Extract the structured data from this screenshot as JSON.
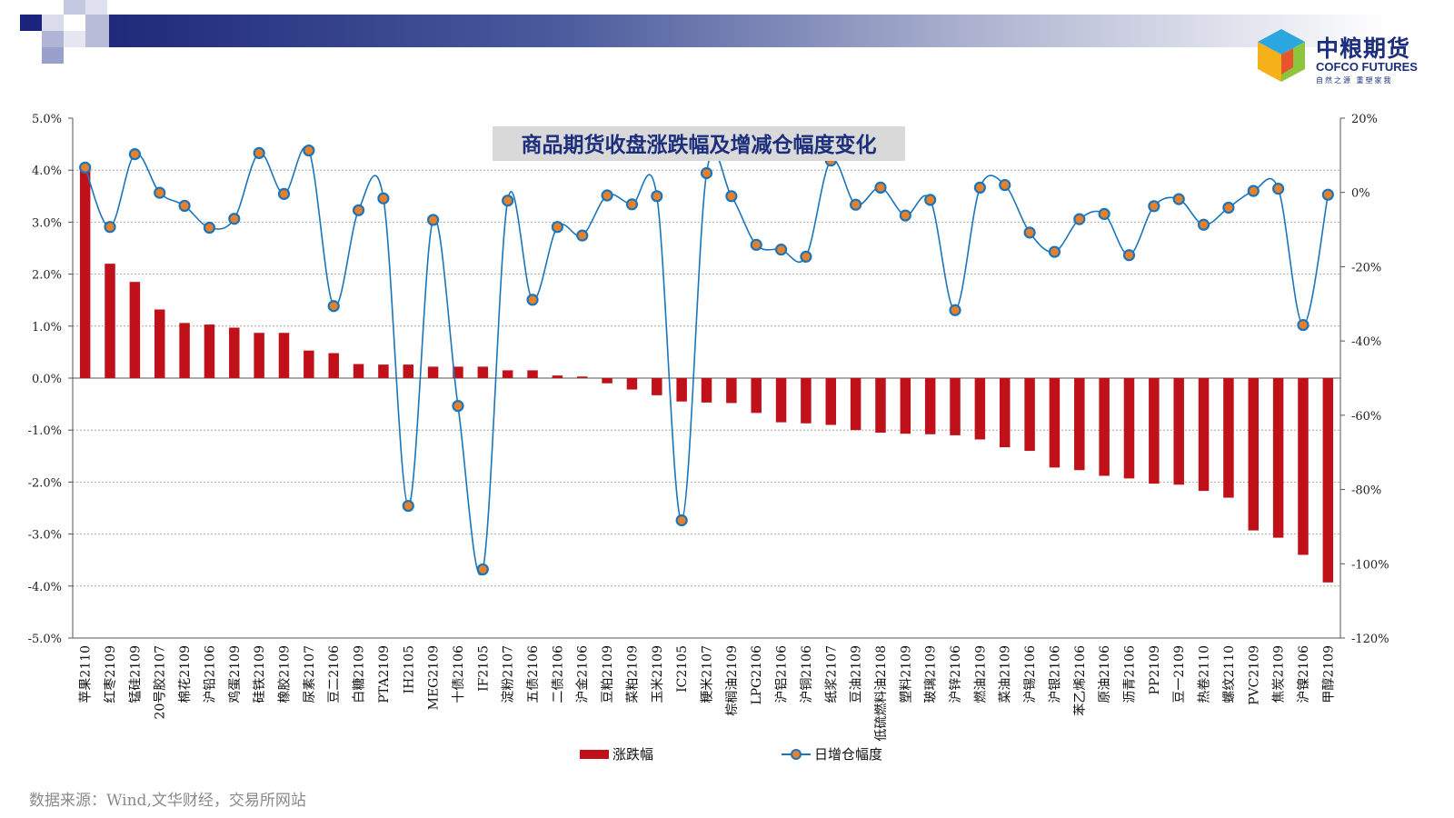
{
  "source_note": "数据来源：Wind,文华财经，交易所网站",
  "logo": {
    "cn": "中粮期货",
    "en": "COFCO FUTURES",
    "slogan": "自然之源 重塑家我"
  },
  "colors": {
    "bar": "#c0111b",
    "line": "#1b75bb",
    "marker_fill": "#e8802a",
    "title_bg": "#d9d9d9",
    "title_text": "#1d2f7c"
  },
  "chart_data": {
    "type": "bar",
    "title": "商品期货收盘涨跌幅及增减仓幅度变化",
    "categories": [
      "苹果2110",
      "红枣2109",
      "锰硅2109",
      "20号胶2107",
      "棉花2109",
      "沪铅2106",
      "鸡蛋2109",
      "硅铁2109",
      "橡胶2109",
      "尿素2107",
      "豆二2106",
      "白糖2109",
      "PTA2109",
      "IH2105",
      "MEG2109",
      "十债2106",
      "IF2105",
      "淀粉2107",
      "五债2106",
      "二债2106",
      "沪金2106",
      "豆粕2109",
      "菜粕2109",
      "玉米2109",
      "IC2105",
      "粳米2107",
      "棕榈油2109",
      "LPG2106",
      "沪铝2106",
      "沪铜2106",
      "纸浆2107",
      "豆油2109",
      "低硫燃料油2108",
      "塑料2109",
      "玻璃2109",
      "沪锌2106",
      "燃油2109",
      "菜油2109",
      "沪锡2106",
      "沪银2106",
      "苯乙烯2106",
      "原油2106",
      "沥青2106",
      "PP2109",
      "豆一2109",
      "热卷2110",
      "螺纹2110",
      "PVC2109",
      "焦炭2109",
      "沪镍2106",
      "甲醇2109"
    ],
    "series": [
      {
        "name": "涨跌幅",
        "type": "bar",
        "axis": "left",
        "values": [
          4.0,
          2.2,
          1.85,
          1.32,
          1.06,
          1.03,
          0.97,
          0.87,
          0.87,
          0.53,
          0.48,
          0.27,
          0.26,
          0.26,
          0.22,
          0.22,
          0.22,
          0.15,
          0.15,
          0.05,
          0.03,
          -0.1,
          -0.22,
          -0.33,
          -0.45,
          -0.47,
          -0.48,
          -0.67,
          -0.85,
          -0.87,
          -0.9,
          -1.0,
          -1.05,
          -1.07,
          -1.08,
          -1.1,
          -1.18,
          -1.33,
          -1.4,
          -1.72,
          -1.77,
          -1.88,
          -1.93,
          -2.03,
          -2.05,
          -2.17,
          -2.3,
          -2.93,
          -3.07,
          -3.4,
          -3.93
        ]
      },
      {
        "name": "日增仓幅度",
        "type": "line",
        "axis": "right",
        "values": [
          6.7,
          -9.3,
          10.3,
          -0.1,
          -3.6,
          -9.5,
          -7.1,
          10.6,
          -0.4,
          11.3,
          -30.6,
          -4.8,
          -1.6,
          -84.4,
          -7.4,
          -57.5,
          -101.5,
          -2.2,
          -28.9,
          -9.3,
          -11.6,
          -0.8,
          -3.2,
          -1.0,
          -88.3,
          5.2,
          -1.0,
          -14.1,
          -15.4,
          -17.3,
          8.6,
          -3.3,
          1.3,
          -6.2,
          -2.0,
          -31.7,
          1.3,
          2.0,
          -10.8,
          -16.0,
          -7.2,
          -5.8,
          -16.9,
          -3.7,
          -1.8,
          -8.7,
          -4.1,
          0.4,
          1.0,
          -35.7,
          -0.6
        ]
      }
    ],
    "y_left": {
      "ticks": [
        "5.0%",
        "4.0%",
        "3.0%",
        "2.0%",
        "1.0%",
        "0.0%",
        "-1.0%",
        "-2.0%",
        "-3.0%",
        "-4.0%",
        "-5.0%"
      ],
      "ylim": [
        -5,
        5
      ]
    },
    "y_right": {
      "ticks": [
        "20%",
        "0%",
        "-20%",
        "-40%",
        "-60%",
        "-80%",
        "-100%",
        "-120%"
      ],
      "ylim": [
        -120,
        20
      ]
    },
    "grid": true,
    "legend": "bottom"
  }
}
